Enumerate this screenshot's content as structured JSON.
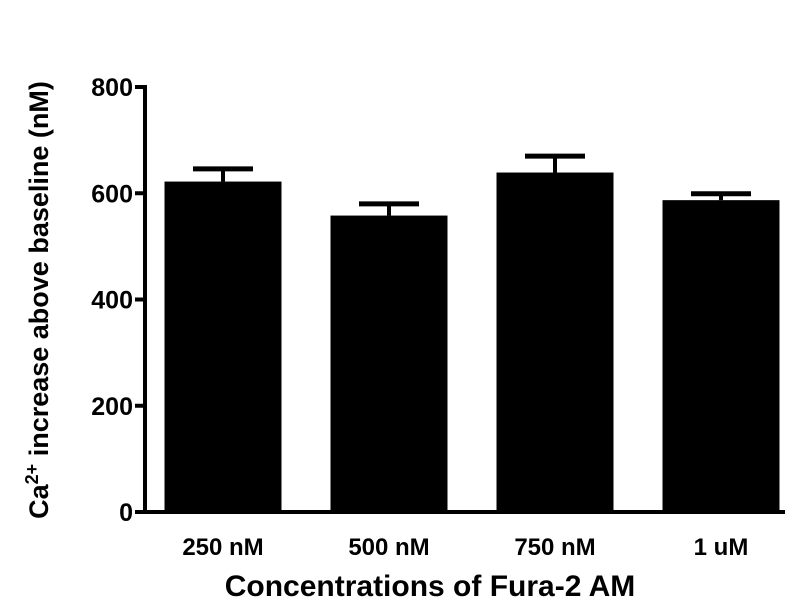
{
  "chart_data": {
    "type": "bar",
    "x_label": "Concentrations of Fura-2 AM",
    "y_label": [
      "Ca",
      "2+",
      " increase above baseline (nM)"
    ],
    "categories": [
      "250 nM",
      "500 nM",
      "750 nM",
      "1 uM"
    ],
    "values": [
      622,
      558,
      639,
      587
    ],
    "errors": [
      24,
      22,
      31,
      12
    ],
    "color": "#000000",
    "ylim": [
      0,
      800
    ],
    "yticks": [
      0,
      200,
      400,
      600,
      800
    ]
  }
}
